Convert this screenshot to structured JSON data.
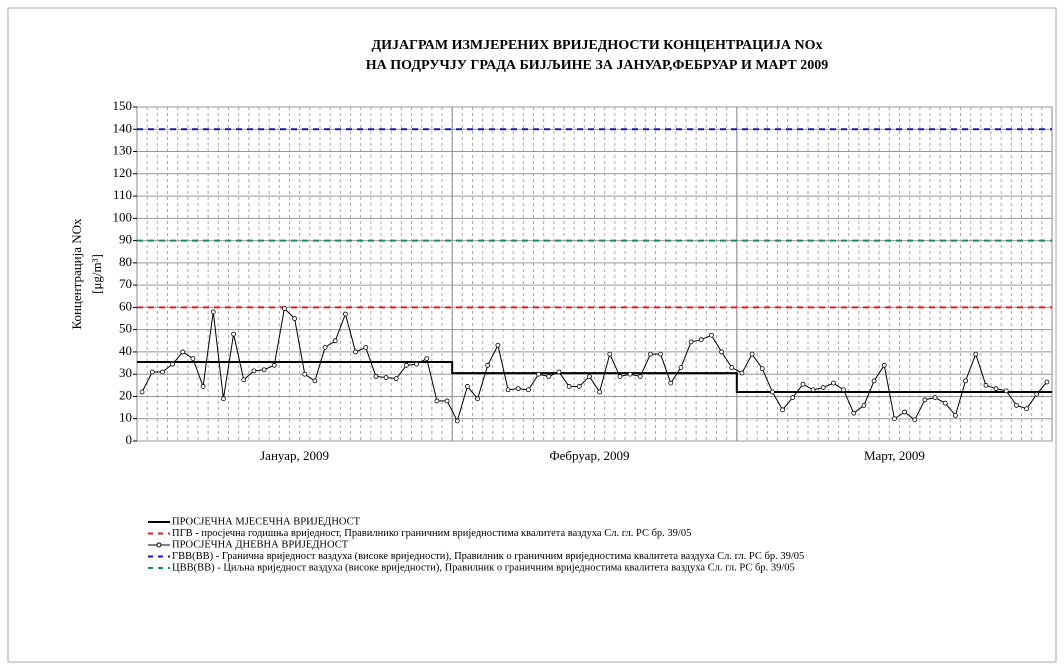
{
  "chart_data": {
    "type": "line",
    "title": [
      "ДИЈАГРАМ ИЗМЈЕРЕНИХ ВРИЈЕДНОСТИ КОНЦЕНТРАЦИЈА NOx",
      "НА ПОДРУЧЈУ ГРАДА БИЈЉИНЕ ЗА ЈАНУАР,ФЕБРУАР И МАРТ 2009"
    ],
    "ylabel": [
      "Концентрација NOx",
      "[μg/m³]"
    ],
    "categories": [
      null,
      null,
      null,
      null,
      null,
      null,
      null,
      null,
      null,
      null,
      null,
      null,
      null,
      null,
      null,
      "Јануар, 2009",
      null,
      null,
      null,
      null,
      null,
      null,
      null,
      null,
      null,
      null,
      null,
      null,
      null,
      null,
      null,
      null,
      null,
      null,
      null,
      null,
      null,
      null,
      null,
      null,
      null,
      null,
      null,
      null,
      "Фебруар, 2009",
      null,
      null,
      null,
      null,
      null,
      null,
      null,
      null,
      null,
      null,
      null,
      null,
      null,
      null,
      null,
      null,
      null,
      null,
      null,
      null,
      null,
      null,
      null,
      null,
      null,
      null,
      null,
      null,
      null,
      "Март, 2009",
      null,
      null,
      null,
      null,
      null,
      null,
      null,
      null,
      null,
      null,
      null,
      null,
      null,
      null,
      null
    ],
    "ylim": [
      0,
      150
    ],
    "yticks": [
      0,
      10,
      20,
      30,
      40,
      50,
      60,
      70,
      80,
      90,
      100,
      110,
      120,
      130,
      140,
      150
    ],
    "grid": true,
    "series": [
      {
        "name": "ПРОСЈЕЧНА МЈЕСЕЧНА ВРИЈЕДНОСТ",
        "color": "#000000",
        "style": "step",
        "values": [
          35.5,
          35.5,
          35.5,
          35.5,
          35.5,
          35.5,
          35.5,
          35.5,
          35.5,
          35.5,
          35.5,
          35.5,
          35.5,
          35.5,
          35.5,
          35.5,
          35.5,
          35.5,
          35.5,
          35.5,
          35.5,
          35.5,
          35.5,
          35.5,
          35.5,
          35.5,
          35.5,
          35.5,
          35.5,
          35.5,
          35.5,
          30.5,
          30.5,
          30.5,
          30.5,
          30.5,
          30.5,
          30.5,
          30.5,
          30.5,
          30.5,
          30.5,
          30.5,
          30.5,
          30.5,
          30.5,
          30.5,
          30.5,
          30.5,
          30.5,
          30.5,
          30.5,
          30.5,
          30.5,
          30.5,
          30.5,
          30.5,
          30.5,
          30.5,
          22,
          22,
          22,
          22,
          22,
          22,
          22,
          22,
          22,
          22,
          22,
          22,
          22,
          22,
          22,
          22,
          22,
          22,
          22,
          22,
          22,
          22,
          22,
          22,
          22,
          22,
          22,
          22,
          22,
          22,
          22
        ]
      },
      {
        "name": "ПГВ - просјечна годишња вриједност, Правилнико граничним вриједностима квалитета ваздуха Сл. гл. РС бр. 39/05",
        "color": "#e02020",
        "style": "dashed",
        "value": 60
      },
      {
        "name": "ПРОСЈЕЧНА ДНЕВНА ВРИЈЕДНОСТ",
        "color": "#000000",
        "style": "markers",
        "values": [
          22,
          31,
          31,
          34.5,
          40,
          37,
          24.5,
          58,
          19,
          48,
          27.5,
          31.5,
          32,
          34,
          59.5,
          55,
          30,
          27,
          42,
          45,
          57,
          40,
          42,
          29,
          28.5,
          28,
          34,
          34.5,
          37,
          18,
          18,
          9,
          24.5,
          19,
          34,
          43,
          23,
          23.5,
          23,
          30,
          29,
          31,
          24.5,
          24.5,
          29,
          22,
          39,
          29,
          30,
          29,
          39,
          39,
          26,
          33,
          44.5,
          45.5,
          47.5,
          40,
          33,
          30.5,
          39,
          32.5,
          22,
          14,
          19.5,
          25.5,
          23,
          24,
          26,
          23,
          12.5,
          16,
          27,
          34,
          10,
          13,
          9.5,
          18.5,
          19.5,
          17,
          11.5,
          27,
          39,
          25,
          23.5,
          22.5,
          16,
          14.5,
          21,
          26.5
        ]
      },
      {
        "name": "ГВВ(ВВ) - Гранична вриједност ваздуха (високе вриједности), Правилник о граничним вриједностима квалитета ваздуха Сл. гл. РС бр. 39/05",
        "color": "#1a1aa8",
        "style": "dashed",
        "value": 140
      },
      {
        "name": "ЦВВ(ВВ) - Циљна вриједност ваздуха (високе вриједности), Правилник о граничним вриједностима квалитета ваздуха Сл. гл. РС бр. 39/05",
        "color": "#1a8a6a",
        "style": "dashed",
        "value": 90
      }
    ]
  }
}
